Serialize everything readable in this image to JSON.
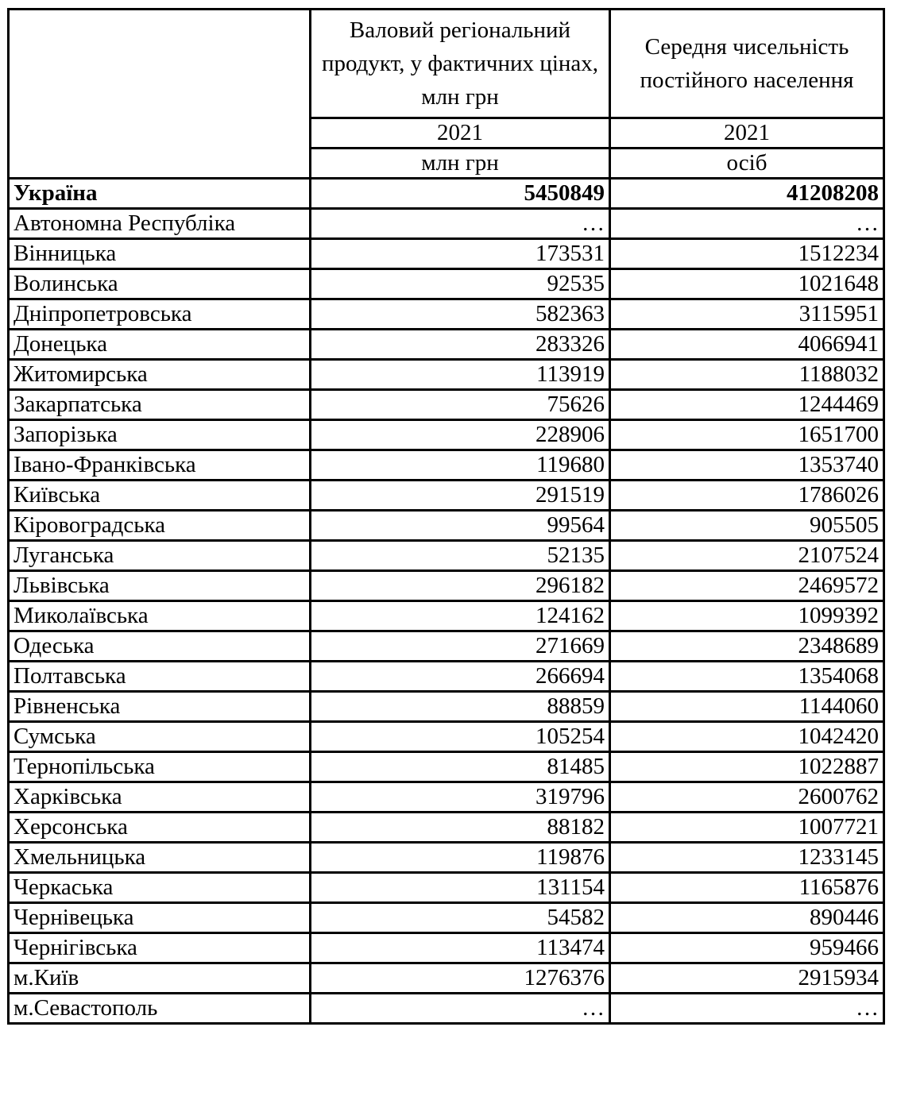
{
  "header": {
    "col1": "Валовий регіональний продукт, у фактичних цінах, млн грн",
    "col2": "Середня чисельність постійного населення",
    "year1": "2021",
    "year2": "2021",
    "unit1": "млн грн",
    "unit2": "осіб"
  },
  "rows": [
    {
      "region": "Україна",
      "grp": "5450849",
      "population": "41208208"
    },
    {
      "region": "Автономна Республіка",
      "grp": "…",
      "population": "…"
    },
    {
      "region": "Вінницька",
      "grp": "173531",
      "population": "1512234"
    },
    {
      "region": "Волинська",
      "grp": "92535",
      "population": "1021648"
    },
    {
      "region": "Дніпропетровська",
      "grp": "582363",
      "population": "3115951"
    },
    {
      "region": "Донецька",
      "grp": "283326",
      "population": "4066941"
    },
    {
      "region": "Житомирська",
      "grp": "113919",
      "population": "1188032"
    },
    {
      "region": "Закарпатська",
      "grp": "75626",
      "population": "1244469"
    },
    {
      "region": "Запорізька",
      "grp": "228906",
      "population": "1651700"
    },
    {
      "region": "Івано-Франківська",
      "grp": "119680",
      "population": "1353740"
    },
    {
      "region": "Київська",
      "grp": "291519",
      "population": "1786026"
    },
    {
      "region": "Кіровоградська",
      "grp": "99564",
      "population": "905505"
    },
    {
      "region": "Луганська",
      "grp": "52135",
      "population": "2107524"
    },
    {
      "region": "Львівська",
      "grp": "296182",
      "population": "2469572"
    },
    {
      "region": "Миколаївська",
      "grp": "124162",
      "population": "1099392"
    },
    {
      "region": "Одеська",
      "grp": "271669",
      "population": "2348689"
    },
    {
      "region": "Полтавська",
      "grp": "266694",
      "population": "1354068"
    },
    {
      "region": "Рівненська",
      "grp": "88859",
      "population": "1144060"
    },
    {
      "region": "Сумська",
      "grp": "105254",
      "population": "1042420"
    },
    {
      "region": "Тернопільська",
      "grp": "81485",
      "population": "1022887"
    },
    {
      "region": "Харківська",
      "grp": "319796",
      "population": "2600762"
    },
    {
      "region": "Херсонська",
      "grp": "88182",
      "population": "1007721"
    },
    {
      "region": "Хмельницька",
      "grp": "119876",
      "population": "1233145"
    },
    {
      "region": "Черкаська",
      "grp": "131154",
      "population": "1165876"
    },
    {
      "region": "Чернівецька",
      "grp": "54582",
      "population": "890446"
    },
    {
      "region": "Чернігівська",
      "grp": "113474",
      "population": "959466"
    },
    {
      "region": "м.Київ",
      "grp": "1276376",
      "population": "2915934"
    },
    {
      "region": "м.Севастополь",
      "grp": "…",
      "population": "…"
    }
  ]
}
